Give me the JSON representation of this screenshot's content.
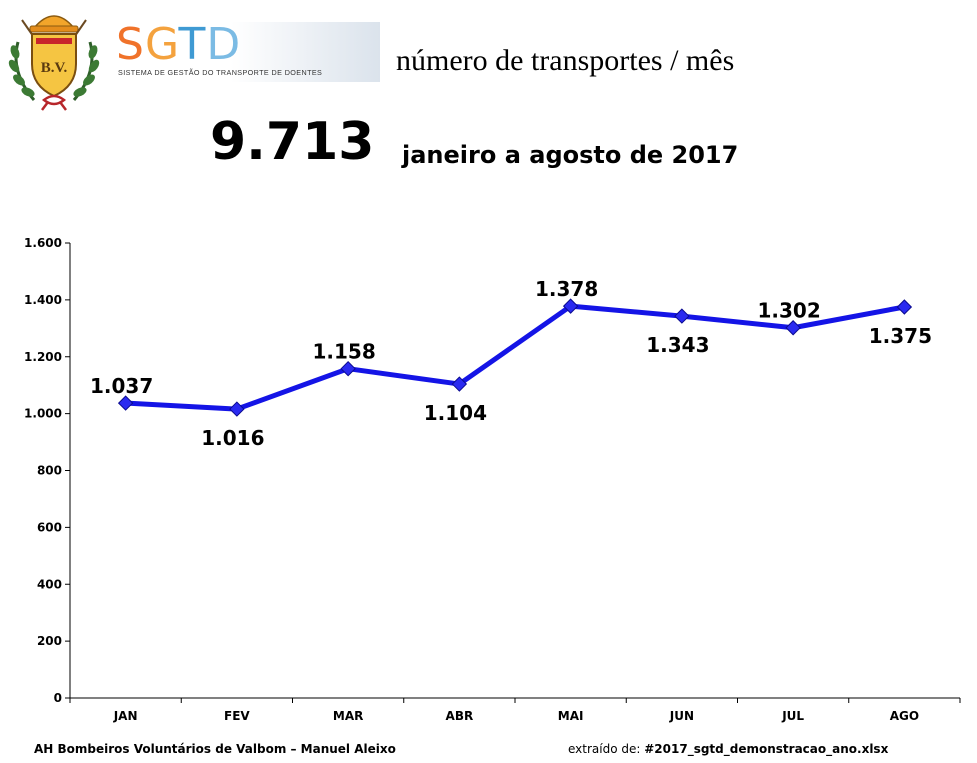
{
  "logo": {
    "emblem_text": "B.V.",
    "mark": {
      "s": "S",
      "g": "G",
      "t": "T",
      "d": "D"
    },
    "subtitle": "SISTEMA DE GESTÃO DO TRANSPORTE DE DOENTES"
  },
  "header": {
    "title": "número de transportes / mês",
    "total": "9.713",
    "period": "janeiro a agosto de 2017"
  },
  "footer": {
    "author": "AH Bombeiros Voluntários de Valbom – Manuel Aleixo",
    "source_prefix": "extraído de:",
    "source_file": "#2017_sgtd_demonstracao_ano.xlsx"
  },
  "colors": {
    "line": "#1414e6",
    "marker": "#2a2af0",
    "axis": "#000000"
  },
  "chart_data": {
    "type": "line",
    "categories": [
      "JAN",
      "FEV",
      "MAR",
      "ABR",
      "MAI",
      "JUN",
      "JUL",
      "AGO"
    ],
    "values": [
      1037,
      1016,
      1158,
      1104,
      1378,
      1343,
      1302,
      1375
    ],
    "data_labels": [
      "1.037",
      "1.016",
      "1.158",
      "1.104",
      "1.378",
      "1.343",
      "1.302",
      "1.375"
    ],
    "label_side": [
      "above",
      "below",
      "above",
      "below",
      "above",
      "below",
      "above",
      "below"
    ],
    "y_ticks": [
      0,
      200,
      400,
      600,
      800,
      1000,
      1200,
      1400,
      1600
    ],
    "y_tick_labels": [
      "0",
      "200",
      "400",
      "600",
      "800",
      "1.000",
      "1.200",
      "1.400",
      "1.600"
    ],
    "ylim": [
      0,
      1600
    ],
    "grid": false,
    "marker": "diamond"
  }
}
